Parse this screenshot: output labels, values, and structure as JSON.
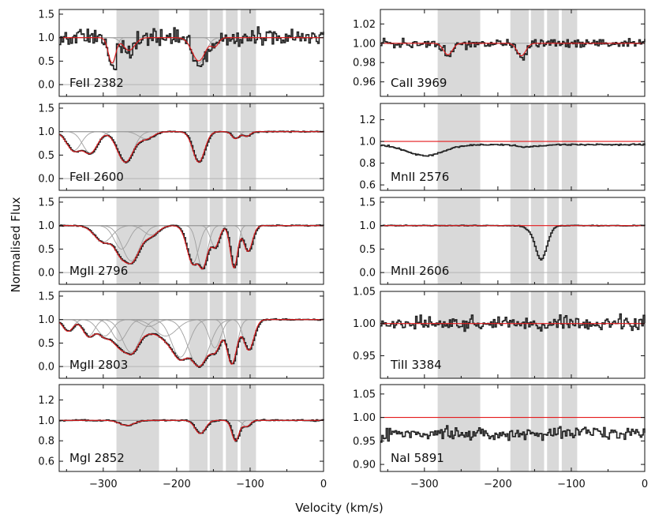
{
  "figure": {
    "xlabel": "Velocity (km/s)",
    "ylabel": "Normalised Flux",
    "x_ticks": [
      "−300",
      "−200",
      "−100",
      "0"
    ],
    "colors": {
      "data": "#222222",
      "model": "#e41a1c",
      "component": "#a0a0a0",
      "shade": "#d9d9d9",
      "reference": "#b4b4b4"
    }
  },
  "chart_data": [
    {
      "type": "line",
      "panel": "left-1",
      "title": "FeII 2382",
      "xlim": [
        -360,
        0
      ],
      "ylim": [
        -0.25,
        1.6
      ],
      "yticks": [
        "0.0",
        "0.5",
        "1.0",
        "1.5"
      ],
      "continuum": 1.0,
      "zero_line": 0.0,
      "noise": 0.14,
      "baseline_offset": 0.0,
      "model_scale": 0.9,
      "components": [
        {
          "v": -288,
          "depth": 0.6,
          "width": 5
        },
        {
          "v": -265,
          "depth": 0.3,
          "width": 8
        },
        {
          "v": -170,
          "depth": 0.55,
          "width": 9
        },
        {
          "v": -148,
          "depth": 0.2,
          "width": 5
        }
      ]
    },
    {
      "type": "line",
      "panel": "left-2",
      "title": "FeII 2600",
      "xlim": [
        -360,
        0
      ],
      "ylim": [
        -0.25,
        1.6
      ],
      "yticks": [
        "0.0",
        "0.5",
        "1.0",
        "1.5"
      ],
      "continuum": 1.0,
      "zero_line": 0.0,
      "noise": 0.008,
      "baseline_offset": 0.0,
      "model_scale": 1.0,
      "components": [
        {
          "v": -340,
          "depth": 0.4,
          "width": 10
        },
        {
          "v": -318,
          "depth": 0.45,
          "width": 10
        },
        {
          "v": -270,
          "depth": 0.65,
          "width": 11
        },
        {
          "v": -242,
          "depth": 0.15,
          "width": 10
        },
        {
          "v": -170,
          "depth": 0.65,
          "width": 8
        },
        {
          "v": -120,
          "depth": 0.15,
          "width": 5
        },
        {
          "v": -105,
          "depth": 0.1,
          "width": 5
        }
      ]
    },
    {
      "type": "line",
      "panel": "left-3",
      "title": "MgII 2796",
      "xlim": [
        -360,
        0
      ],
      "ylim": [
        -0.25,
        1.6
      ],
      "yticks": [
        "0.0",
        "0.5",
        "1.0",
        "1.5"
      ],
      "continuum": 1.0,
      "zero_line": 0.0,
      "noise": 0.008,
      "baseline_offset": 0.0,
      "model_scale": 1.0,
      "components": [
        {
          "v": -300,
          "depth": 0.35,
          "width": 12
        },
        {
          "v": -275,
          "depth": 0.5,
          "width": 10
        },
        {
          "v": -262,
          "depth": 0.75,
          "width": 12
        },
        {
          "v": -235,
          "depth": 0.2,
          "width": 10
        },
        {
          "v": -178,
          "depth": 0.8,
          "width": 8
        },
        {
          "v": -165,
          "depth": 0.9,
          "width": 7
        },
        {
          "v": -148,
          "depth": 0.45,
          "width": 6
        },
        {
          "v": -122,
          "depth": 0.9,
          "width": 5
        },
        {
          "v": -103,
          "depth": 0.55,
          "width": 6
        }
      ]
    },
    {
      "type": "line",
      "panel": "left-4",
      "title": "MgII 2803",
      "xlim": [
        -360,
        0
      ],
      "ylim": [
        -0.25,
        1.6
      ],
      "yticks": [
        "0.0",
        "0.5",
        "1.0",
        "1.5"
      ],
      "continuum": 1.0,
      "zero_line": 0.0,
      "noise": 0.01,
      "baseline_offset": 0.0,
      "model_scale": 1.0,
      "components": [
        {
          "v": -348,
          "depth": 0.25,
          "width": 7
        },
        {
          "v": -320,
          "depth": 0.35,
          "width": 8
        },
        {
          "v": -298,
          "depth": 0.35,
          "width": 10
        },
        {
          "v": -278,
          "depth": 0.45,
          "width": 10
        },
        {
          "v": -262,
          "depth": 0.7,
          "width": 12
        },
        {
          "v": -238,
          "depth": 0.15,
          "width": 10
        },
        {
          "v": -215,
          "depth": 0.35,
          "width": 15
        },
        {
          "v": -195,
          "depth": 0.8,
          "width": 12
        },
        {
          "v": -170,
          "depth": 1.0,
          "width": 14
        },
        {
          "v": -148,
          "depth": 0.6,
          "width": 8
        },
        {
          "v": -125,
          "depth": 0.95,
          "width": 7
        },
        {
          "v": -102,
          "depth": 0.65,
          "width": 7
        }
      ]
    },
    {
      "type": "line",
      "panel": "left-5",
      "title": "MgI 2852",
      "xlim": [
        -360,
        0
      ],
      "ylim": [
        0.5,
        1.35
      ],
      "yticks": [
        "0.6",
        "0.8",
        "1.0",
        "1.2"
      ],
      "continuum": 1.0,
      "zero_line": null,
      "noise": 0.005,
      "baseline_offset": 0.0,
      "model_scale": 1.0,
      "components": [
        {
          "v": -268,
          "depth": 0.05,
          "width": 10
        },
        {
          "v": -168,
          "depth": 0.13,
          "width": 7
        },
        {
          "v": -120,
          "depth": 0.2,
          "width": 5
        },
        {
          "v": -105,
          "depth": 0.06,
          "width": 5
        }
      ]
    },
    {
      "type": "line",
      "panel": "right-1",
      "title": "CaII 3969",
      "xlim": [
        -360,
        0
      ],
      "ylim": [
        0.945,
        1.035
      ],
      "yticks": [
        "0.96",
        "0.98",
        "1.00",
        "1.02"
      ],
      "continuum": 1.0,
      "zero_line": null,
      "noise": 0.0035,
      "baseline_offset": 0.0,
      "model_scale": 1.0,
      "components": [
        {
          "v": -268,
          "depth": 0.012,
          "width": 6
        },
        {
          "v": -168,
          "depth": 0.013,
          "width": 6
        }
      ]
    },
    {
      "type": "line",
      "panel": "right-2",
      "title": "MnII 2576",
      "xlim": [
        -360,
        0
      ],
      "ylim": [
        0.55,
        1.35
      ],
      "yticks": [
        "0.6",
        "0.8",
        "1.0",
        "1.2"
      ],
      "continuum": 1.0,
      "zero_line": null,
      "noise": 0.005,
      "baseline_offset": -0.03,
      "model_scale": 0.0,
      "components": [
        {
          "v": -300,
          "depth": 0.1,
          "width": 25
        },
        {
          "v": -160,
          "depth": 0.02,
          "width": 15
        }
      ]
    },
    {
      "type": "line",
      "panel": "right-3",
      "title": "MnII 2606",
      "xlim": [
        -360,
        0
      ],
      "ylim": [
        -0.25,
        1.6
      ],
      "yticks": [
        "0.0",
        "0.5",
        "1.0",
        "1.5"
      ],
      "continuum": 1.0,
      "zero_line": 0.0,
      "noise": 0.006,
      "baseline_offset": 0.0,
      "model_scale": 0.0,
      "components": [
        {
          "v": -142,
          "depth": 0.72,
          "width": 8
        },
        {
          "v": -160,
          "depth": 0.05,
          "width": 6
        }
      ]
    },
    {
      "type": "line",
      "panel": "right-4",
      "title": "TiII 3384",
      "xlim": [
        -360,
        0
      ],
      "ylim": [
        0.915,
        1.05
      ],
      "yticks": [
        "0.95",
        "1.00",
        "1.05"
      ],
      "continuum": 1.0,
      "zero_line": null,
      "noise": 0.008,
      "baseline_offset": 0.0,
      "model_scale": 1.0,
      "components": []
    },
    {
      "type": "line",
      "panel": "right-5",
      "title": "NaI 5891",
      "xlim": [
        -360,
        0
      ],
      "ylim": [
        0.885,
        1.07
      ],
      "yticks": [
        "0.90",
        "0.95",
        "1.00",
        "1.05"
      ],
      "continuum": 1.0,
      "zero_line": null,
      "noise": 0.01,
      "baseline_offset": -0.035,
      "model_scale": 0.0,
      "components": []
    }
  ],
  "shaded_velocity_bands": [
    [
      -282,
      -224
    ],
    [
      -183,
      -158
    ],
    [
      -155,
      -137
    ],
    [
      -133,
      -117
    ],
    [
      -113,
      -92
    ]
  ]
}
